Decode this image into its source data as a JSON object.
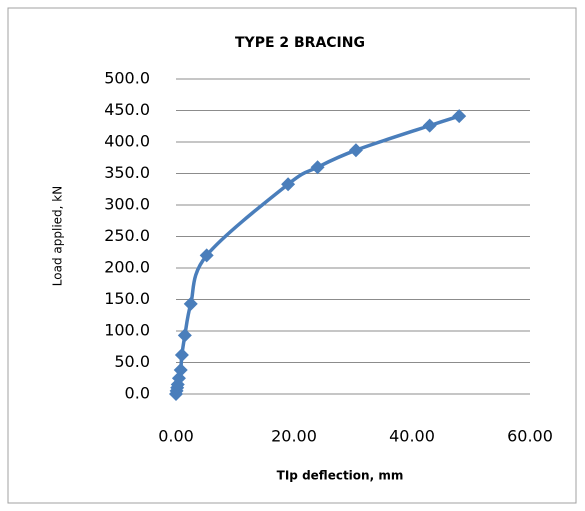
{
  "chart_data": {
    "type": "scatter",
    "title": "TYPE 2 BRACING",
    "x_label": "TIp deflection, mm",
    "y_label": "Load applied, kN",
    "series": [
      {
        "name": "Type 2 bracing",
        "color": "#4a7ebb",
        "x": [
          0,
          0.1,
          0.2,
          0.3,
          0.5,
          0.8,
          1.0,
          1.5,
          2.5,
          5.2,
          19,
          24,
          30.5,
          43,
          48
        ],
        "values": [
          0,
          5,
          10,
          15,
          25,
          38,
          62,
          93,
          143,
          220,
          333,
          360,
          387,
          426,
          441
        ]
      }
    ],
    "xlim": [
      0,
      60
    ],
    "xticks": [
      {
        "value": 0,
        "label": "0.00"
      },
      {
        "value": 20,
        "label": "20.00"
      },
      {
        "value": 40,
        "label": "40.00"
      },
      {
        "value": 60,
        "label": "60.00"
      }
    ],
    "ylim": [
      0,
      500
    ],
    "yticks": [
      {
        "value": 0,
        "label": "0.0"
      },
      {
        "value": 50,
        "label": "50.0"
      },
      {
        "value": 100,
        "label": "100.0"
      },
      {
        "value": 150,
        "label": "150.0"
      },
      {
        "value": 200,
        "label": "200.0"
      },
      {
        "value": 250,
        "label": "250.0"
      },
      {
        "value": 300,
        "label": "300.0"
      },
      {
        "value": 350,
        "label": "350.0"
      },
      {
        "value": 400,
        "label": "400.0"
      },
      {
        "value": 450,
        "label": "450.0"
      },
      {
        "value": 500,
        "label": "500.0"
      }
    ],
    "grid": true
  }
}
